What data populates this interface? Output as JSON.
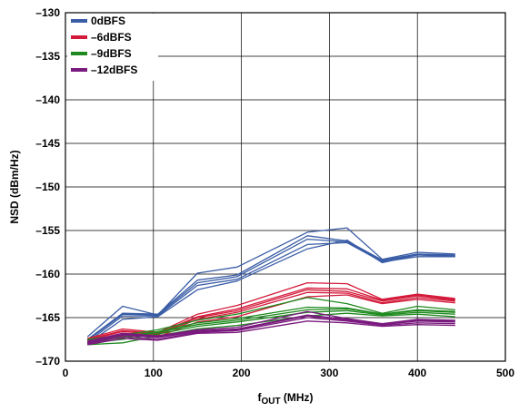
{
  "chart_data": {
    "type": "line",
    "xlabel_main": "f",
    "xlabel_sub": "OUT",
    "xlabel_unit": " (MHz)",
    "ylabel": "NSD (dBm/Hz)",
    "xlim": [
      0,
      500
    ],
    "ylim": [
      -170,
      -130
    ],
    "xticks": [
      0,
      100,
      200,
      300,
      400,
      500
    ],
    "yticks": [
      -170,
      -165,
      -160,
      -155,
      -150,
      -145,
      -140,
      -135,
      -130
    ],
    "xtick_labels": [
      "0",
      "100",
      "200",
      "300",
      "400",
      "500"
    ],
    "ytick_labels": [
      "–170",
      "–165",
      "–160",
      "–155",
      "–150",
      "–145",
      "–140",
      "–135",
      "–130"
    ],
    "grid": true,
    "legend_position": "top-left",
    "x": [
      25,
      65,
      105,
      150,
      195,
      275,
      320,
      360,
      400,
      443
    ],
    "series": [
      {
        "name": "0dBFS",
        "color": "#3a5da6",
        "lines": [
          [
            -167.6,
            -164.6,
            -164.7,
            -161.0,
            -160.3,
            -156.0,
            -156.3,
            -158.5,
            -157.8,
            -157.9
          ],
          [
            -167.8,
            -164.8,
            -164.8,
            -161.3,
            -160.6,
            -156.6,
            -156.4,
            -158.6,
            -158.0,
            -158.0
          ],
          [
            -167.2,
            -163.7,
            -164.7,
            -159.9,
            -159.2,
            -155.2,
            -154.7,
            -158.3,
            -157.5,
            -157.7
          ],
          [
            -168.0,
            -165.2,
            -164.9,
            -161.8,
            -160.8,
            -157.1,
            -156.1,
            -158.7,
            -157.8,
            -158.0
          ],
          [
            -167.5,
            -164.5,
            -164.6,
            -160.7,
            -160.1,
            -155.6,
            -156.2,
            -158.4,
            -157.7,
            -157.8
          ]
        ]
      },
      {
        "name": "–6dBFS",
        "color": "#d41a3a",
        "lines": [
          [
            -167.6,
            -166.6,
            -166.9,
            -165.0,
            -164.2,
            -161.8,
            -162.0,
            -163.1,
            -162.5,
            -163.0
          ],
          [
            -167.8,
            -166.8,
            -167.0,
            -165.2,
            -164.4,
            -162.1,
            -162.2,
            -163.3,
            -162.7,
            -163.1
          ],
          [
            -167.4,
            -166.3,
            -166.7,
            -164.6,
            -163.6,
            -161.0,
            -161.1,
            -162.9,
            -162.3,
            -162.8
          ],
          [
            -168.0,
            -167.1,
            -167.2,
            -165.5,
            -164.9,
            -162.6,
            -162.4,
            -163.4,
            -162.9,
            -163.3
          ],
          [
            -167.5,
            -166.5,
            -166.8,
            -164.9,
            -164.0,
            -161.6,
            -161.7,
            -163.0,
            -162.4,
            -162.9
          ]
        ]
      },
      {
        "name": "–9dBFS",
        "color": "#1e8a1e",
        "lines": [
          [
            -167.7,
            -167.3,
            -166.7,
            -165.8,
            -165.3,
            -164.1,
            -164.0,
            -164.6,
            -164.2,
            -164.4
          ],
          [
            -167.9,
            -167.5,
            -166.9,
            -166.0,
            -165.5,
            -164.4,
            -164.2,
            -164.7,
            -164.4,
            -164.6
          ],
          [
            -167.5,
            -167.0,
            -166.4,
            -165.3,
            -164.6,
            -162.7,
            -163.4,
            -164.5,
            -163.7,
            -164.1
          ],
          [
            -168.1,
            -167.9,
            -167.1,
            -166.3,
            -165.9,
            -164.8,
            -164.5,
            -164.8,
            -164.6,
            -164.9
          ],
          [
            -167.6,
            -167.2,
            -166.6,
            -165.6,
            -165.1,
            -163.8,
            -163.9,
            -164.6,
            -164.1,
            -164.3
          ]
        ]
      },
      {
        "name": "–12dBFS",
        "color": "#7a1a7e",
        "lines": [
          [
            -167.9,
            -167.0,
            -167.3,
            -166.6,
            -166.4,
            -164.8,
            -165.3,
            -165.8,
            -165.4,
            -165.5
          ],
          [
            -168.0,
            -167.2,
            -167.5,
            -166.7,
            -166.5,
            -165.0,
            -165.4,
            -165.9,
            -165.6,
            -165.7
          ],
          [
            -167.7,
            -166.8,
            -167.1,
            -166.4,
            -166.1,
            -164.3,
            -165.1,
            -165.7,
            -165.2,
            -165.3
          ],
          [
            -168.1,
            -167.4,
            -167.6,
            -166.8,
            -166.7,
            -165.4,
            -165.6,
            -166.0,
            -165.8,
            -165.9
          ],
          [
            -167.8,
            -166.9,
            -167.2,
            -166.5,
            -166.3,
            -164.7,
            -165.2,
            -165.8,
            -165.3,
            -165.4
          ]
        ]
      }
    ]
  }
}
